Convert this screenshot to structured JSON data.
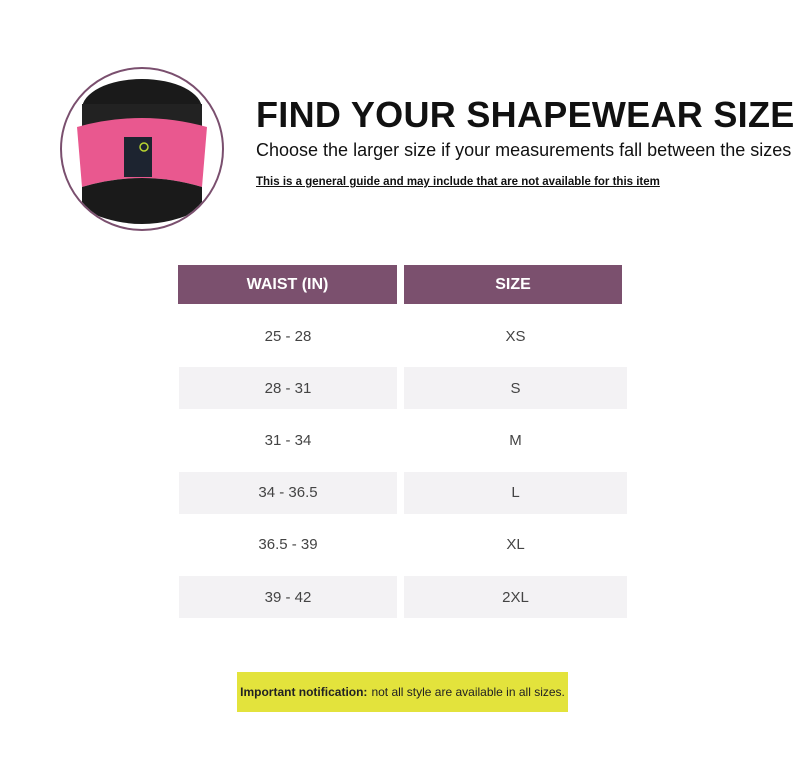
{
  "header": {
    "title": "FIND YOUR SHAPEWEAR SIZE",
    "subtitle": "Choose the larger size if your measurements fall between the sizes",
    "note": "This is a general guide and may include that are not available for this item"
  },
  "product_image": {
    "icon": "waist-trainer-photo",
    "colors": {
      "band": "#e9588f",
      "base": "#1a1a1a"
    }
  },
  "table": {
    "headers": [
      "WAIST (IN)",
      "SIZE"
    ],
    "rows": [
      [
        "25 - 28",
        "XS"
      ],
      [
        "28 - 31",
        "S"
      ],
      [
        "31 - 34",
        "M"
      ],
      [
        "34 - 36.5",
        "L"
      ],
      [
        "36.5 - 39",
        "XL"
      ],
      [
        "39 - 42",
        "2XL"
      ]
    ],
    "header_color": "#7b506e",
    "stripe_color": "#f3f2f4"
  },
  "notice": {
    "label": "Important notification:",
    "text": "not all style are available in all sizes.",
    "color": "#e3e33c"
  }
}
